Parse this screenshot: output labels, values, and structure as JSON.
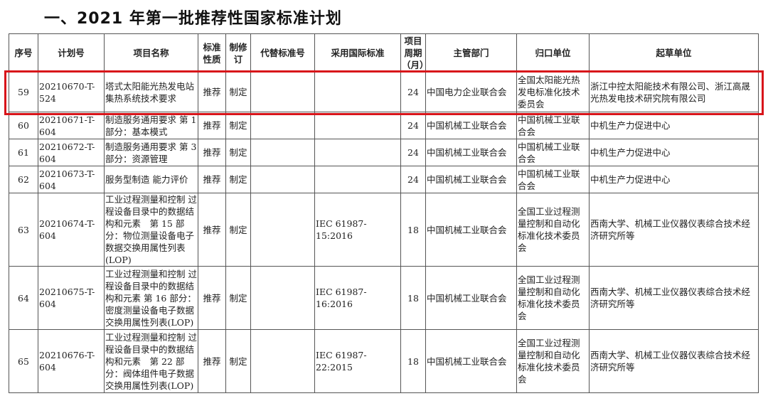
{
  "title": "一、2021 年第一批推荐性国家标准计划",
  "columns": [
    "序号",
    "计划号",
    "项目名称",
    "标准性质",
    "制修订",
    "代替标准号",
    "采用国际标准",
    "项目周期（月）",
    "主管部门",
    "归口单位",
    "起草单位"
  ],
  "rows": [
    {
      "no": "59",
      "plan": "20210670-T-524",
      "name": "塔式太阳能光热发电站集热系统技术要求",
      "nature": "推荐",
      "type": "制定",
      "replace": "",
      "intl": "",
      "period": "24",
      "dept": "中国电力企业联合会",
      "tc": "全国太阳能光热发电标准化技术委员会",
      "drafter": "浙江中控太阳能技术有限公司、浙江高晟光热发电技术研究院有限公司"
    },
    {
      "no": "60",
      "plan": "20210671-T-604",
      "name": "制造服务通用要求 第 1 部分：基本模式",
      "nature": "推荐",
      "type": "制定",
      "replace": "",
      "intl": "",
      "period": "24",
      "dept": "中国机械工业联合会",
      "tc": "中国机械工业联合会",
      "drafter": "中机生产力促进中心"
    },
    {
      "no": "61",
      "plan": "20210672-T-604",
      "name": "制造服务通用要求 第 3 部分：资源管理",
      "nature": "推荐",
      "type": "制定",
      "replace": "",
      "intl": "",
      "period": "24",
      "dept": "中国机械工业联合会",
      "tc": "中国机械工业联合会",
      "drafter": "中机生产力促进中心"
    },
    {
      "no": "62",
      "plan": "20210673-T-604",
      "name": "服务型制造 能力评价",
      "nature": "推荐",
      "type": "制定",
      "replace": "",
      "intl": "",
      "period": "24",
      "dept": "中国机械工业联合会",
      "tc": "中国机械工业联合会",
      "drafter": "中机生产力促进中心"
    },
    {
      "no": "63",
      "plan": "20210674-T-604",
      "name": "工业过程测量和控制 过程设备目录中的数据结构和元素　第 15 部分：物位测量设备电子数据交换用属性列表(LOP)",
      "nature": "推荐",
      "type": "制定",
      "replace": "",
      "intl": "IEC 61987-15:2016",
      "period": "18",
      "dept": "中国机械工业联合会",
      "tc": "全国工业过程测量控制和自动化标准化技术委员会",
      "drafter": "西南大学、机械工业仪器仪表综合技术经济研究所等"
    },
    {
      "no": "64",
      "plan": "20210675-T-604",
      "name": "工业过程测量和控制 过程设备目录中的数据结构和元素 第 16 部分：密度测量设备电子数据交换用属性列表(LOP)",
      "nature": "推荐",
      "type": "制定",
      "replace": "",
      "intl": "IEC 61987-16:2016",
      "period": "18",
      "dept": "中国机械工业联合会",
      "tc": "全国工业过程测量控制和自动化标准化技术委员会",
      "drafter": "西南大学、机械工业仪器仪表综合技术经济研究所等"
    },
    {
      "no": "65",
      "plan": "20210676-T-604",
      "name": "工业过程测量和控制 过程设备目录中的数据结构和元素　第 22 部分：阀体组件电子数据交换用属性列表(LOP)",
      "nature": "推荐",
      "type": "制定",
      "replace": "",
      "intl": "IEC 61987-22:2015",
      "period": "18",
      "dept": "中国机械工业联合会",
      "tc": "全国工业过程测量控制和自动化标准化技术委员会",
      "drafter": "西南大学、机械工业仪器仪表综合技术经济研究所等"
    }
  ],
  "highlight_color": "#d8141a"
}
